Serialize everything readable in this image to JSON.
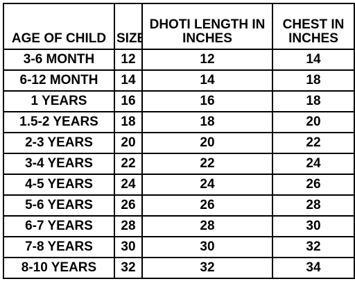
{
  "headers": {
    "age": [
      "AGE OF CHILD"
    ],
    "size": [
      "SIZE"
    ],
    "dhoti": [
      "DHOTI LENGTH IN",
      "INCHES"
    ],
    "chest": [
      "CHEST IN",
      "INCHES"
    ]
  },
  "rows": [
    {
      "age": "3-6 MONTH",
      "size": "12",
      "dhoti": "12",
      "chest": "14"
    },
    {
      "age": "6-12 MONTH",
      "size": "14",
      "dhoti": "14",
      "chest": "18"
    },
    {
      "age": "1 YEARS",
      "size": "16",
      "dhoti": "16",
      "chest": "18"
    },
    {
      "age": "1.5-2 YEARS",
      "size": "18",
      "dhoti": "18",
      "chest": "20"
    },
    {
      "age": "2-3 YEARS",
      "size": "20",
      "dhoti": "20",
      "chest": "22"
    },
    {
      "age": "3-4 YEARS",
      "size": "22",
      "dhoti": "22",
      "chest": "24"
    },
    {
      "age": "4-5 YEARS",
      "size": "24",
      "dhoti": "24",
      "chest": "26"
    },
    {
      "age": "5-6 YEARS",
      "size": "26",
      "dhoti": "26",
      "chest": "28"
    },
    {
      "age": "6-7 YEARS",
      "size": "28",
      "dhoti": "28",
      "chest": "30"
    },
    {
      "age": "7-8 YEARS",
      "size": "30",
      "dhoti": "30",
      "chest": "32"
    },
    {
      "age": "8-10 YEARS",
      "size": "32",
      "dhoti": "32",
      "chest": "34"
    }
  ]
}
